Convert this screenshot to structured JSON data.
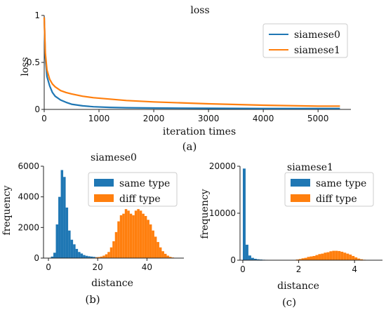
{
  "chart_data": [
    {
      "id": "a",
      "type": "line",
      "title": "loss",
      "xlabel": "iteration times",
      "ylabel": "loss",
      "caption": "(a)",
      "xlim": [
        0,
        5600
      ],
      "ylim": [
        0,
        1.0
      ],
      "xticks": [
        0,
        1000,
        2000,
        3000,
        4000,
        5000
      ],
      "yticks": [
        0.0,
        0.5,
        1.0
      ],
      "legend_position": "top-right",
      "colors": {
        "siamese0": "#1f77b4",
        "siamese1": "#ff7f0e"
      },
      "series": [
        {
          "name": "siamese0",
          "color": "#1f77b4",
          "x": [
            0,
            20,
            50,
            100,
            150,
            200,
            300,
            400,
            500,
            700,
            900,
            1200,
            1500,
            2000,
            3000,
            4000,
            5000,
            5400
          ],
          "y": [
            0.98,
            0.55,
            0.35,
            0.25,
            0.18,
            0.14,
            0.1,
            0.075,
            0.055,
            0.038,
            0.028,
            0.022,
            0.018,
            0.015,
            0.012,
            0.01,
            0.01,
            0.01
          ]
        },
        {
          "name": "siamese1",
          "color": "#ff7f0e",
          "x": [
            0,
            20,
            50,
            100,
            150,
            200,
            300,
            400,
            500,
            700,
            900,
            1200,
            1500,
            2000,
            3000,
            4000,
            5000,
            5400
          ],
          "y": [
            0.98,
            0.6,
            0.42,
            0.32,
            0.27,
            0.24,
            0.2,
            0.18,
            0.165,
            0.14,
            0.125,
            0.11,
            0.095,
            0.08,
            0.06,
            0.045,
            0.035,
            0.035
          ]
        }
      ]
    },
    {
      "id": "b",
      "type": "bar",
      "title": "siamese0",
      "xlabel": "distance",
      "ylabel": "frequency",
      "caption": "(b)",
      "xlim": [
        -2,
        55
      ],
      "ylim": [
        0,
        6000
      ],
      "xticks": [
        0,
        20,
        40
      ],
      "yticks": [
        0,
        2000,
        4000,
        6000
      ],
      "legend_position": "top-right",
      "bin_width": 1,
      "series": [
        {
          "name": "same type",
          "color": "#1f77b4",
          "x": [
            1,
            2,
            3,
            4,
            5,
            6,
            7,
            8,
            9,
            10,
            11,
            12,
            13,
            14,
            15,
            16,
            17,
            18,
            19,
            20
          ],
          "y": [
            100,
            350,
            2200,
            4000,
            5750,
            5300,
            3300,
            1800,
            1200,
            900,
            600,
            400,
            300,
            200,
            150,
            120,
            100,
            80,
            60,
            40
          ]
        },
        {
          "name": "diff type",
          "color": "#ff7f0e",
          "x": [
            19,
            20,
            21,
            22,
            23,
            24,
            25,
            26,
            27,
            28,
            29,
            30,
            31,
            32,
            33,
            34,
            35,
            36,
            37,
            38,
            39,
            40,
            41,
            42,
            43,
            44,
            45,
            46,
            47,
            48,
            49,
            50
          ],
          "y": [
            50,
            70,
            100,
            160,
            250,
            400,
            700,
            1100,
            1700,
            2400,
            2800,
            2900,
            3200,
            3100,
            2900,
            2800,
            3100,
            3200,
            3100,
            2900,
            2750,
            2500,
            2200,
            1800,
            1400,
            1050,
            700,
            450,
            280,
            160,
            80,
            40
          ]
        }
      ]
    },
    {
      "id": "c",
      "type": "bar",
      "title": "siamese1",
      "xlabel": "distance",
      "ylabel": "frequency",
      "caption": "(c)",
      "xlim": [
        -0.1,
        5.0
      ],
      "ylim": [
        0,
        20000
      ],
      "xticks": [
        0,
        2,
        4
      ],
      "yticks": [
        0,
        10000,
        20000
      ],
      "legend_position": "top-right",
      "bin_width": 0.1,
      "series": [
        {
          "name": "same type",
          "color": "#1f77b4",
          "x": [
            0.0,
            0.1,
            0.2,
            0.3,
            0.4,
            0.5,
            0.6,
            0.7,
            0.8,
            0.9
          ],
          "y": [
            19500,
            3300,
            1000,
            500,
            300,
            200,
            150,
            100,
            80,
            60
          ]
        },
        {
          "name": "diff type",
          "color": "#ff7f0e",
          "x": [
            1.9,
            2.0,
            2.1,
            2.2,
            2.3,
            2.4,
            2.5,
            2.6,
            2.7,
            2.8,
            2.9,
            3.0,
            3.1,
            3.2,
            3.3,
            3.4,
            3.5,
            3.6,
            3.7,
            3.8,
            3.9,
            4.0,
            4.1,
            4.2,
            4.3
          ],
          "y": [
            150,
            250,
            400,
            500,
            700,
            800,
            900,
            1100,
            1300,
            1400,
            1600,
            1700,
            1900,
            2000,
            2000,
            1950,
            1800,
            1600,
            1400,
            1200,
            900,
            600,
            350,
            200,
            100
          ]
        }
      ]
    }
  ]
}
